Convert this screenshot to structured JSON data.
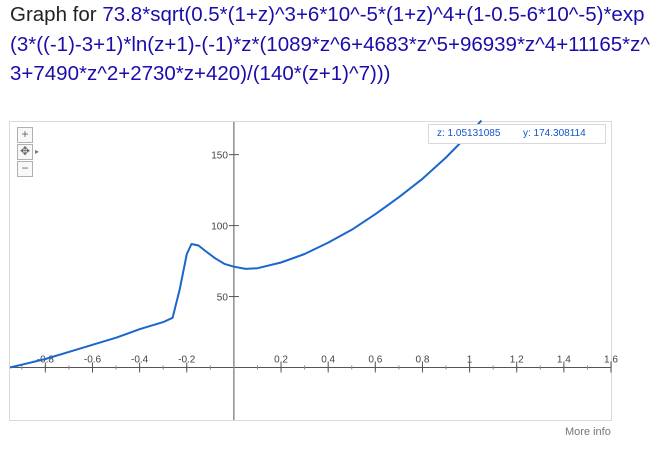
{
  "heading": {
    "prefix": "Graph for",
    "formula": "73.8*sqrt(0.5*(1+z)^3+6*10^-5*(1+z)^4+(1-0.5-6*10^-5)*exp(3*((-1)-3+1)*ln(z+1)-(-1)*z*(1089*z^6+4683*z^5+96939*z^4+11165*z^3+7490*z^2+2730*z+420)/(140*(z+1)^7)))"
  },
  "readout": {
    "z_text": "z: 1.05131085",
    "y_text": "y: 174.308114"
  },
  "zoom": {
    "plus": "+",
    "minus": "−",
    "pan": "✥",
    "arrow": "▸"
  },
  "footer": {
    "more_info": "More info"
  },
  "chart_data": {
    "type": "line",
    "title": "",
    "xlabel": "",
    "ylabel": "",
    "xlim": [
      -0.95,
      1.6
    ],
    "ylim": [
      -37,
      173
    ],
    "x_ticks": [
      "-0.8",
      "-0.6",
      "-0.4",
      "-0.2",
      "0.2",
      "0.4",
      "0.6",
      "0.8",
      "1",
      "1.2",
      "1.4",
      "1.6"
    ],
    "x_tick_values": [
      -0.8,
      -0.6,
      -0.4,
      -0.2,
      0.2,
      0.4,
      0.6,
      0.8,
      1,
      1.2,
      1.4,
      1.6
    ],
    "y_ticks": [
      "50",
      "100",
      "150"
    ],
    "y_tick_values": [
      50,
      100,
      150
    ],
    "color": "#1a66cc",
    "series": [
      {
        "x": [
          -0.95,
          -0.9,
          -0.8,
          -0.7,
          -0.6,
          -0.5,
          -0.4,
          -0.3,
          -0.26,
          -0.23,
          -0.2,
          -0.18,
          -0.15,
          -0.12,
          -0.08,
          -0.04,
          0,
          0.05,
          0.1,
          0.2,
          0.3,
          0.4,
          0.5,
          0.6,
          0.7,
          0.8,
          0.9,
          1.0,
          1.05
        ],
        "y": [
          0,
          2,
          6,
          11,
          16,
          21,
          27,
          32,
          35,
          55,
          80,
          87,
          86,
          82,
          77,
          73,
          71,
          69.5,
          70,
          74,
          80,
          88,
          97,
          108,
          120,
          133,
          148,
          165,
          174
        ]
      }
    ]
  }
}
